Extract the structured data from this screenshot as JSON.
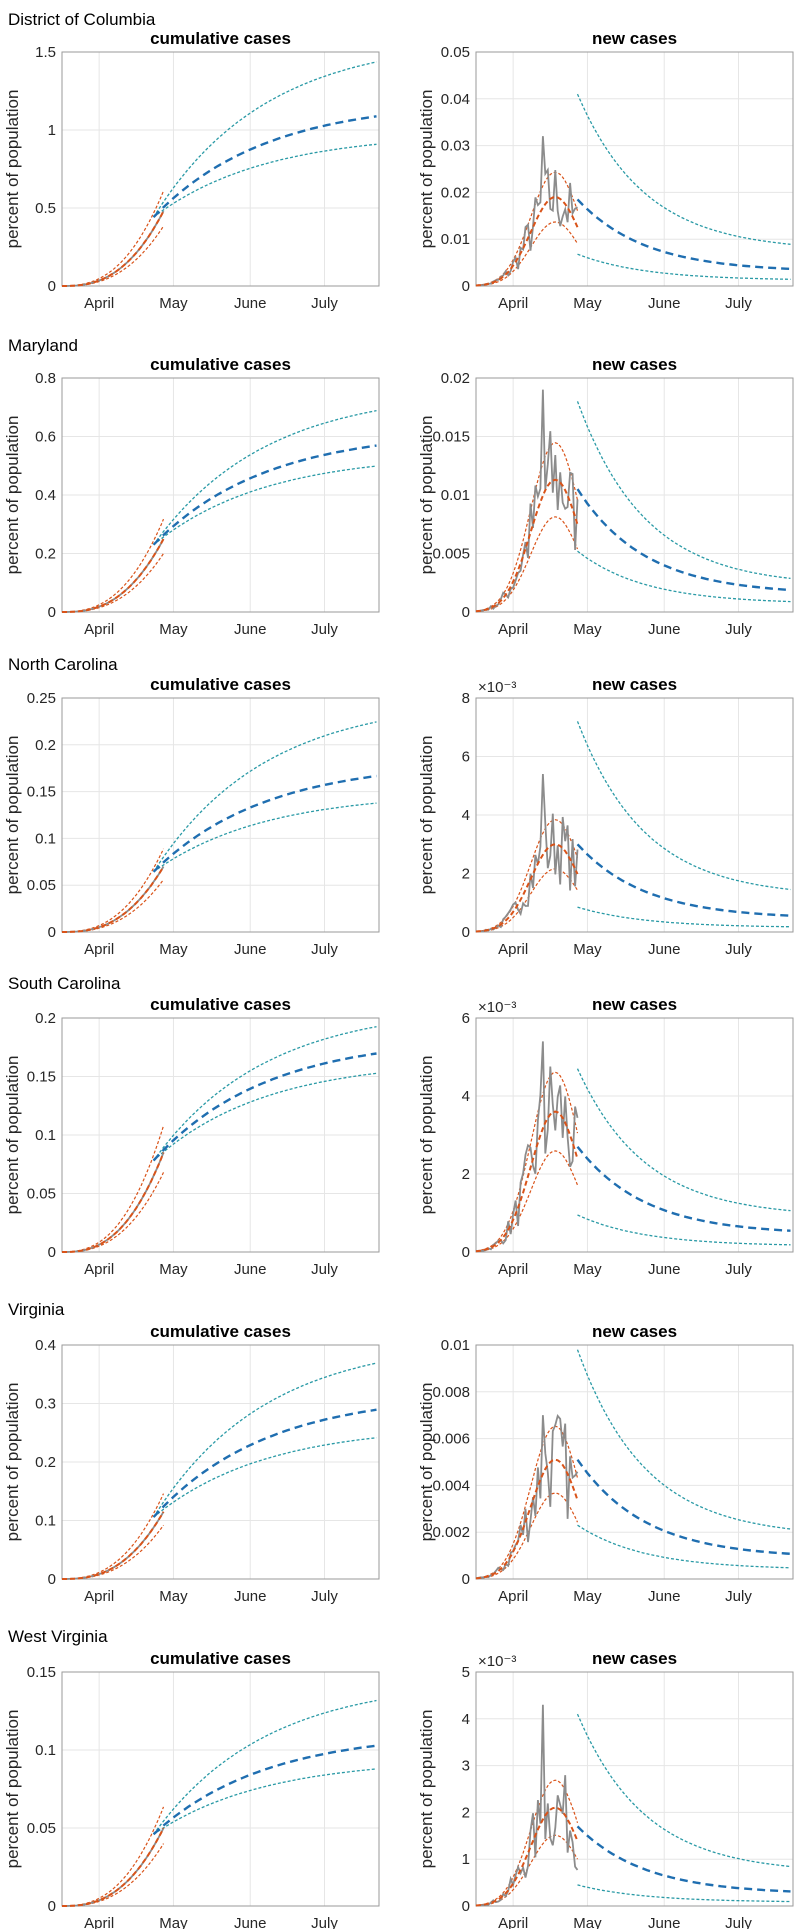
{
  "states": [
    {
      "name": "District of Columbia",
      "cum_ylim": [
        0,
        1.5
      ],
      "cum_ticks": [
        "0",
        "0.5",
        "1",
        "1.5"
      ],
      "cum_end": {
        "mean": 1.09,
        "upper": 1.44,
        "lower": 0.91
      },
      "cum_join": {
        "value": 0.48
      },
      "new_ylim": [
        0,
        0.05
      ],
      "new_ticks": [
        "0",
        "0.01",
        "0.02",
        "0.03",
        "0.04",
        "0.05"
      ],
      "new_exp": "",
      "new_peak": 0.019,
      "new_band": {
        "upper": 0.041,
        "mean": 0.0185,
        "lower": 0.0068
      },
      "new_end": {
        "upper": 0.0075,
        "mean": 0.003,
        "lower": 0.0012
      },
      "new_obs_max": 0.032
    },
    {
      "name": "Maryland",
      "cum_ylim": [
        0,
        0.8
      ],
      "cum_ticks": [
        "0",
        "0.2",
        "0.4",
        "0.6",
        "0.8"
      ],
      "cum_end": {
        "mean": 0.57,
        "upper": 0.69,
        "lower": 0.5
      },
      "cum_join": {
        "value": 0.25
      },
      "new_ylim": [
        0,
        0.02
      ],
      "new_ticks": [
        "0",
        "0.005",
        "0.01",
        "0.015",
        "0.02"
      ],
      "new_exp": "",
      "new_peak": 0.0113,
      "new_band": {
        "upper": 0.018,
        "mean": 0.0105,
        "lower": 0.0052
      },
      "new_end": {
        "upper": 0.0022,
        "mean": 0.0015,
        "lower": 0.0007
      },
      "new_obs_max": 0.019
    },
    {
      "name": "North Carolina",
      "cum_ylim": [
        0,
        0.25
      ],
      "cum_ticks": [
        "0",
        "0.05",
        "0.1",
        "0.15",
        "0.2",
        "0.25"
      ],
      "cum_end": {
        "mean": 0.167,
        "upper": 0.225,
        "lower": 0.138
      },
      "cum_join": {
        "value": 0.07
      },
      "new_ylim": [
        0,
        8
      ],
      "new_ticks": [
        "0",
        "2",
        "4",
        "6",
        "8"
      ],
      "new_exp": "×10⁻³",
      "new_peak": 3.0,
      "new_band": {
        "upper": 7.2,
        "mean": 3.0,
        "lower": 0.85
      },
      "new_end": {
        "upper": 1.2,
        "mean": 0.45,
        "lower": 0.15
      },
      "new_obs_max": 5.4
    },
    {
      "name": "South Carolina",
      "cum_ylim": [
        0,
        0.2
      ],
      "cum_ticks": [
        "0",
        "0.05",
        "0.1",
        "0.15",
        "0.2"
      ],
      "cum_end": {
        "mean": 0.17,
        "upper": 0.193,
        "lower": 0.153
      },
      "cum_join": {
        "value": 0.085
      },
      "new_ylim": [
        0,
        6
      ],
      "new_ticks": [
        "0",
        "2",
        "4",
        "6"
      ],
      "new_exp": "×10⁻³",
      "new_peak": 3.6,
      "new_band": {
        "upper": 4.7,
        "mean": 2.7,
        "lower": 0.95
      },
      "new_end": {
        "upper": 0.9,
        "mean": 0.45,
        "lower": 0.15
      },
      "new_obs_max": 5.4
    },
    {
      "name": "Virginia",
      "cum_ylim": [
        0,
        0.4
      ],
      "cum_ticks": [
        "0",
        "0.1",
        "0.2",
        "0.3",
        "0.4"
      ],
      "cum_end": {
        "mean": 0.29,
        "upper": 0.37,
        "lower": 0.242
      },
      "cum_join": {
        "value": 0.115
      },
      "new_ylim": [
        0,
        0.01
      ],
      "new_ticks": [
        "0",
        "0.002",
        "0.004",
        "0.006",
        "0.008",
        "0.01"
      ],
      "new_exp": "",
      "new_peak": 0.0051,
      "new_band": {
        "upper": 0.0098,
        "mean": 0.0051,
        "lower": 0.0023
      },
      "new_end": {
        "upper": 0.0018,
        "mean": 0.0009,
        "lower": 0.0004
      },
      "new_obs_max": 0.007
    },
    {
      "name": "West Virginia",
      "cum_ylim": [
        0,
        0.15
      ],
      "cum_ticks": [
        "0",
        "0.05",
        "0.1",
        "0.15"
      ],
      "cum_end": {
        "mean": 0.103,
        "upper": 0.132,
        "lower": 0.088
      },
      "cum_join": {
        "value": 0.05
      },
      "new_ylim": [
        0,
        5
      ],
      "new_ticks": [
        "0",
        "1",
        "2",
        "3",
        "4",
        "5"
      ],
      "new_exp": "×10⁻³",
      "new_peak": 2.1,
      "new_band": {
        "upper": 4.1,
        "mean": 1.7,
        "lower": 0.45
      },
      "new_end": {
        "upper": 0.7,
        "mean": 0.25,
        "lower": 0.08
      },
      "new_obs_max": 4.3
    }
  ],
  "cum_title": "cumulative cases",
  "new_title": "new cases",
  "ylabel": "percent of population",
  "x_ticks": [
    "April",
    "May",
    "June",
    "July"
  ],
  "colors": {
    "mean": "#1f6eb0",
    "band": "#2a9aa6",
    "fit": "#d95319",
    "obs": "#8c8c8c",
    "axis": "#262626"
  },
  "chart_data": [
    {
      "type": "line",
      "title": "cumulative cases",
      "state": "District of Columbia",
      "ylabel": "percent of population",
      "ylim": [
        0,
        1.5
      ],
      "x_categories": [
        "April",
        "May",
        "June",
        "July"
      ]
    },
    {
      "type": "line",
      "title": "new cases",
      "state": "District of Columbia",
      "ylabel": "percent of population",
      "ylim": [
        0,
        0.05
      ],
      "x_categories": [
        "April",
        "May",
        "June",
        "July"
      ]
    },
    {
      "type": "line",
      "title": "cumulative cases",
      "state": "Maryland",
      "ylabel": "percent of population",
      "ylim": [
        0,
        0.8
      ],
      "x_categories": [
        "April",
        "May",
        "June",
        "July"
      ]
    },
    {
      "type": "line",
      "title": "new cases",
      "state": "Maryland",
      "ylabel": "percent of population",
      "ylim": [
        0,
        0.02
      ],
      "x_categories": [
        "April",
        "May",
        "June",
        "July"
      ]
    },
    {
      "type": "line",
      "title": "cumulative cases",
      "state": "North Carolina",
      "ylabel": "percent of population",
      "ylim": [
        0,
        0.25
      ],
      "x_categories": [
        "April",
        "May",
        "June",
        "July"
      ]
    },
    {
      "type": "line",
      "title": "new cases",
      "state": "North Carolina",
      "ylabel": "percent of population",
      "ylim": [
        0,
        0.008
      ],
      "x_categories": [
        "April",
        "May",
        "June",
        "July"
      ]
    },
    {
      "type": "line",
      "title": "cumulative cases",
      "state": "South Carolina",
      "ylabel": "percent of population",
      "ylim": [
        0,
        0.2
      ],
      "x_categories": [
        "April",
        "May",
        "June",
        "July"
      ]
    },
    {
      "type": "line",
      "title": "new cases",
      "state": "South Carolina",
      "ylabel": "percent of population",
      "ylim": [
        0,
        0.006
      ],
      "x_categories": [
        "April",
        "May",
        "June",
        "July"
      ]
    },
    {
      "type": "line",
      "title": "cumulative cases",
      "state": "Virginia",
      "ylabel": "percent of population",
      "ylim": [
        0,
        0.4
      ],
      "x_categories": [
        "April",
        "May",
        "June",
        "July"
      ]
    },
    {
      "type": "line",
      "title": "new cases",
      "state": "Virginia",
      "ylabel": "percent of population",
      "ylim": [
        0,
        0.01
      ],
      "x_categories": [
        "April",
        "May",
        "June",
        "July"
      ]
    },
    {
      "type": "line",
      "title": "cumulative cases",
      "state": "West Virginia",
      "ylabel": "percent of population",
      "ylim": [
        0,
        0.15
      ],
      "x_categories": [
        "April",
        "May",
        "June",
        "July"
      ]
    },
    {
      "type": "line",
      "title": "new cases",
      "state": "West Virginia",
      "ylabel": "percent of population",
      "ylim": [
        0,
        0.005
      ],
      "x_categories": [
        "April",
        "May",
        "June",
        "July"
      ]
    }
  ]
}
